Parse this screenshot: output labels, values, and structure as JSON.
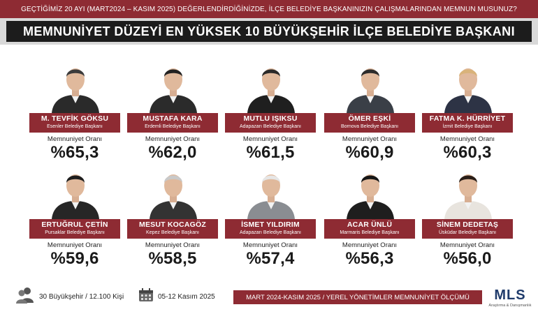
{
  "question": "GEÇTİĞİMİZ 20 AYI (MART2024 – KASIM 2025) DEĞERLENDİRDİĞİNİZDE, İLÇE BELEDİYE BAŞKANINIZIN ÇALIŞMALARINDAN MEMNUN MUSUNUZ?",
  "headline": "MEMNUNİYET DÜZEYİ EN YÜKSEK 10 BÜYÜKŞEHİR İLÇE BELEDİYE BAŞKANI",
  "rate_label": "Memnuniyet Oranı",
  "mayors": [
    {
      "name": "M. TEVFİK GÖKSU",
      "role": "Esenler Belediye Başkanı",
      "rate": "%65,3"
    },
    {
      "name": "MUSTAFA KARA",
      "role": "Erdemli Belediye Başkanı",
      "rate": "%62,0"
    },
    {
      "name": "MUTLU IŞIKSU",
      "role": "Adapazarı Belediye Başkanı",
      "rate": "%61,5"
    },
    {
      "name": "ÖMER EŞKİ",
      "role": "Bornova Belediye Başkanı",
      "rate": "%60,9"
    },
    {
      "name": "FATMA K. HÜRRİYET",
      "role": "İzmit Belediye Başkanı",
      "rate": "%60,3"
    },
    {
      "name": "ERTUĞRUL ÇETİN",
      "role": "Pursaklar Belediye Başkanı",
      "rate": "%59,6"
    },
    {
      "name": "MESUT KOCAGÖZ",
      "role": "Kepez Belediye Başkanı",
      "rate": "%58,5"
    },
    {
      "name": "İSMET YILDIRIM",
      "role": "Adapazarı Belediye Başkanı",
      "rate": "%57,4"
    },
    {
      "name": "ACAR ÜNLÜ",
      "role": "Marmaris Belediye Başkanı",
      "rate": "%56,3"
    },
    {
      "name": "SİNEM DEDETAŞ",
      "role": "Üsküdar Belediye Başkanı",
      "rate": "%56,0"
    }
  ],
  "footer": {
    "sample": "30 Büyükşehir / 12.100 Kişi",
    "dates": "05-12 Kasım 2025",
    "survey": "MART 2024-KASIM 2025 / YEREL YÖNETİMLER MEMNUNİYET ÖLÇÜMÜ",
    "logo": "MLS",
    "logo_sub": "Araştırma & Danışmanlık",
    "people_icon": "people-icon",
    "calendar_icon": "calendar-icon"
  },
  "colors": {
    "accent": "#8e2b33",
    "headline_bg": "#1c1c1c",
    "logo": "#1f3b6b"
  }
}
